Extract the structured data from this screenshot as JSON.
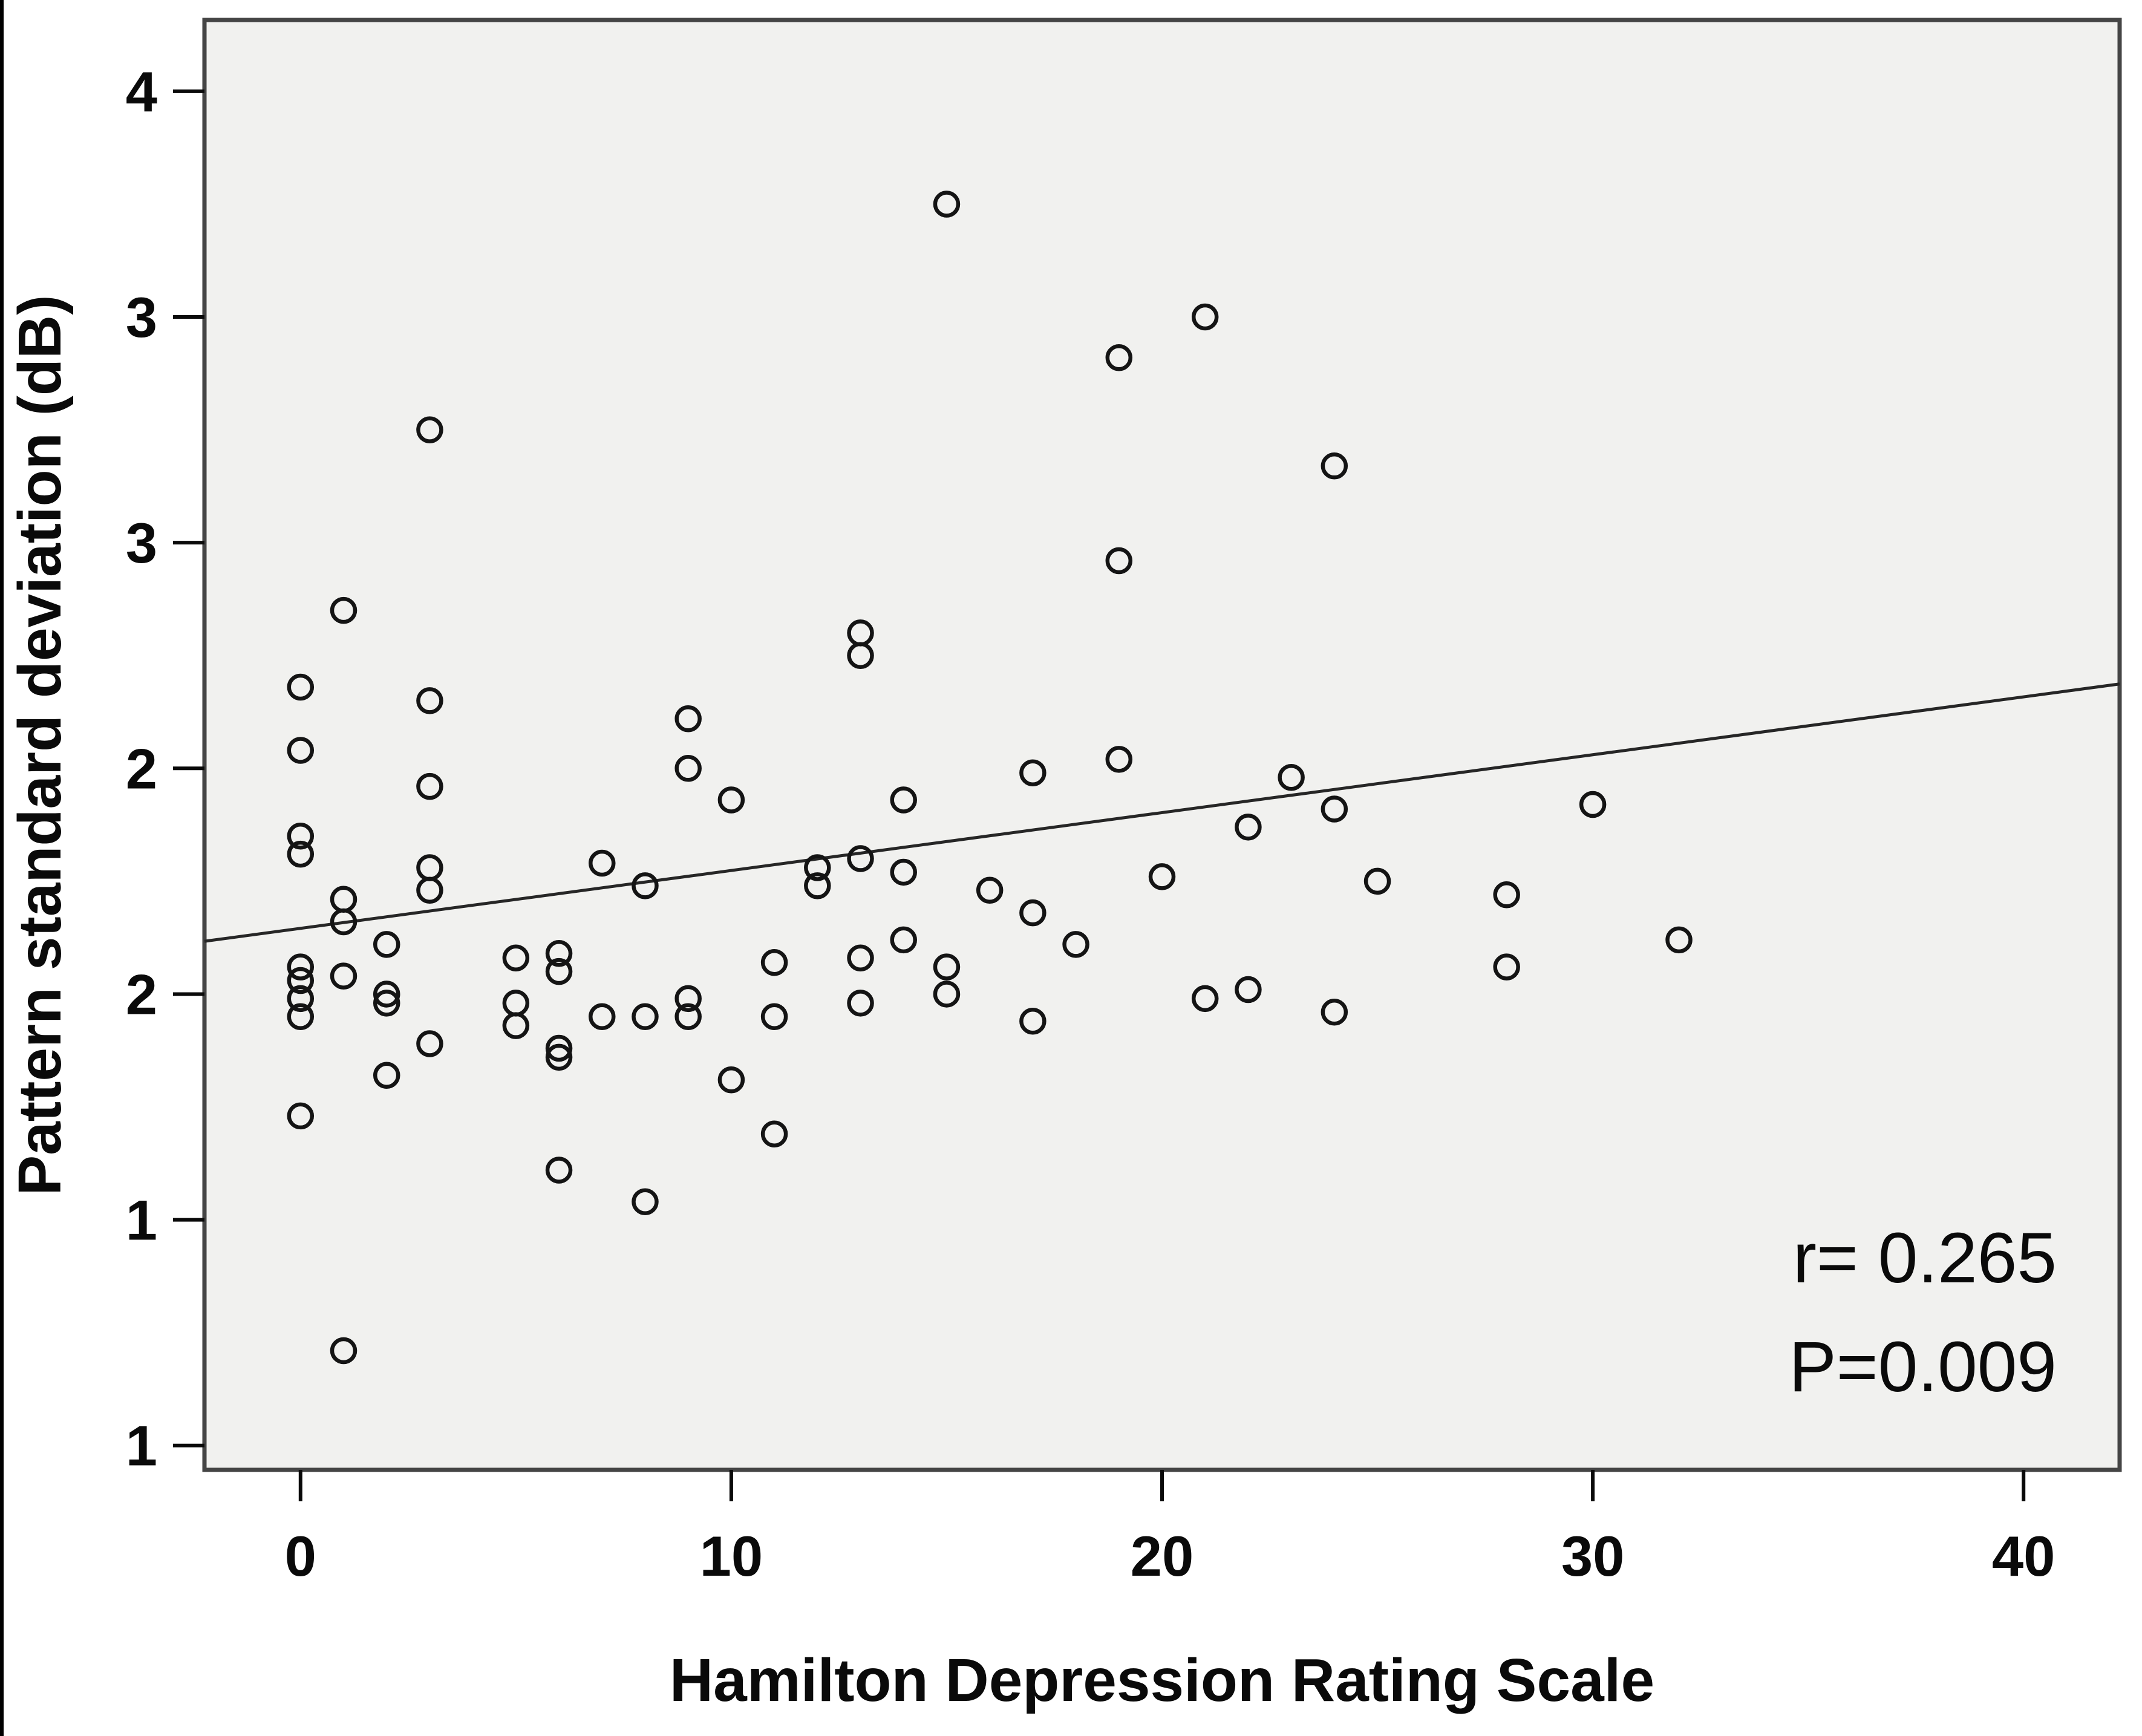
{
  "chart_data": {
    "type": "scatter",
    "title": "",
    "xlabel": "Hamilton Depression Rating Scale",
    "ylabel": "Pattern standard deviation (dB)",
    "x_ticks": [
      0,
      10,
      20,
      30,
      40
    ],
    "y_ticks": [
      {
        "value": 4.0,
        "label": "4"
      },
      {
        "value": 3.5,
        "label": "3"
      },
      {
        "value": 3.0,
        "label": "3"
      },
      {
        "value": 2.5,
        "label": "2"
      },
      {
        "value": 2.0,
        "label": "2"
      },
      {
        "value": 1.5,
        "label": "1"
      },
      {
        "value": 1.0,
        "label": "1"
      }
    ],
    "xlim": [
      -2.23,
      42.23
    ],
    "ylim": [
      0.946,
      4.158
    ],
    "grid": false,
    "legend": null,
    "plot_background": "#f1f1ef",
    "border_color": "#454545",
    "marker": {
      "shape": "open-circle",
      "color": "#141414"
    },
    "accent_color": "#000000",
    "annotation": {
      "line1": "r= 0.265",
      "line2": "P=0.009"
    },
    "regression_line": {
      "x1": -2.23,
      "y1": 2.117,
      "x2": 42.23,
      "y2": 2.687
    },
    "points": [
      [
        0,
        2.68
      ],
      [
        0,
        2.54
      ],
      [
        0,
        2.35
      ],
      [
        0,
        2.31
      ],
      [
        0,
        2.06
      ],
      [
        0,
        2.03
      ],
      [
        0,
        1.99
      ],
      [
        0,
        1.95
      ],
      [
        0,
        1.73
      ],
      [
        1,
        2.85
      ],
      [
        1,
        2.21
      ],
      [
        1,
        2.16
      ],
      [
        1,
        2.04
      ],
      [
        1,
        1.21
      ],
      [
        2,
        2.11
      ],
      [
        2,
        2.0
      ],
      [
        2,
        1.98
      ],
      [
        2,
        1.82
      ],
      [
        3,
        3.25
      ],
      [
        3,
        2.65
      ],
      [
        3,
        2.46
      ],
      [
        3,
        2.28
      ],
      [
        3,
        2.23
      ],
      [
        3,
        1.89
      ],
      [
        5,
        2.08
      ],
      [
        5,
        1.98
      ],
      [
        5,
        1.93
      ],
      [
        6,
        2.09
      ],
      [
        6,
        2.05
      ],
      [
        6,
        1.88
      ],
      [
        6,
        1.86
      ],
      [
        6,
        1.61
      ],
      [
        7,
        2.29
      ],
      [
        7,
        1.95
      ],
      [
        8,
        2.24
      ],
      [
        8,
        1.95
      ],
      [
        8,
        1.54
      ],
      [
        9,
        2.61
      ],
      [
        9,
        2.5
      ],
      [
        9,
        1.99
      ],
      [
        9,
        1.95
      ],
      [
        10,
        2.43
      ],
      [
        10,
        1.81
      ],
      [
        11,
        2.07
      ],
      [
        11,
        1.95
      ],
      [
        11,
        1.69
      ],
      [
        12,
        2.28
      ],
      [
        12,
        2.24
      ],
      [
        13,
        2.8
      ],
      [
        13,
        2.75
      ],
      [
        13,
        2.3
      ],
      [
        13,
        2.08
      ],
      [
        13,
        1.98
      ],
      [
        14,
        2.43
      ],
      [
        14,
        2.27
      ],
      [
        14,
        2.12
      ],
      [
        15,
        3.75
      ],
      [
        15,
        2.06
      ],
      [
        15,
        2.0
      ],
      [
        16,
        2.23
      ],
      [
        17,
        2.49
      ],
      [
        17,
        2.18
      ],
      [
        17,
        1.94
      ],
      [
        18,
        2.11
      ],
      [
        19,
        3.41
      ],
      [
        19,
        2.96
      ],
      [
        19,
        2.52
      ],
      [
        20,
        2.26
      ],
      [
        21,
        3.5
      ],
      [
        21,
        1.99
      ],
      [
        22,
        2.37
      ],
      [
        22,
        2.01
      ],
      [
        23,
        2.48
      ],
      [
        24,
        3.17
      ],
      [
        24,
        2.41
      ],
      [
        24,
        1.96
      ],
      [
        25,
        2.25
      ],
      [
        28,
        2.22
      ],
      [
        28,
        2.06
      ],
      [
        30,
        2.42
      ],
      [
        32,
        2.12
      ]
    ]
  }
}
